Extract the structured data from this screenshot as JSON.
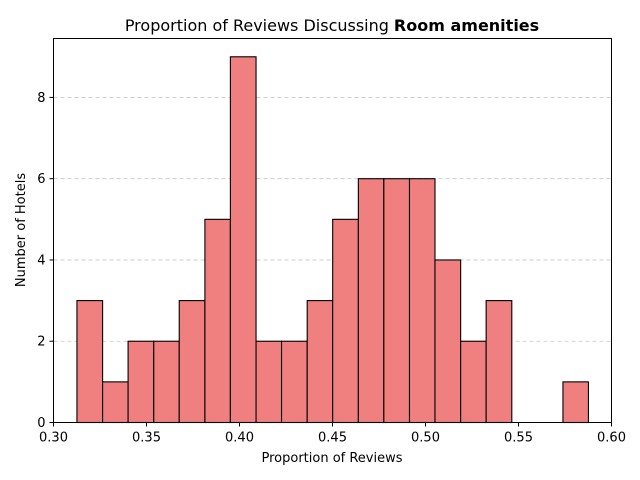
{
  "chart_data": {
    "type": "bar",
    "subtype": "histogram",
    "title": "Proportion of Reviews Discussing",
    "title_bold": "Room amenities",
    "xlabel": "Proportion of Reviews",
    "ylabel": "Number of Hotels",
    "xlim": [
      0.3,
      0.6
    ],
    "ylim": [
      0,
      9.45
    ],
    "xticks": [
      "0.30",
      "0.35",
      "0.40",
      "0.45",
      "0.50",
      "0.55",
      "0.60"
    ],
    "xtick_values": [
      0.3,
      0.35,
      0.4,
      0.45,
      0.5,
      0.55,
      0.6
    ],
    "yticks": [
      "0",
      "2",
      "4",
      "6",
      "8"
    ],
    "ytick_values": [
      0,
      2,
      4,
      6,
      8
    ],
    "grid": "horizontal-dashed",
    "bar_color": "#f08080",
    "edge_color": "#000000",
    "bins": [
      {
        "x0": 0.3126,
        "x1": 0.3264,
        "value": 3
      },
      {
        "x0": 0.3264,
        "x1": 0.3401,
        "value": 1
      },
      {
        "x0": 0.3401,
        "x1": 0.3539,
        "value": 2
      },
      {
        "x0": 0.3539,
        "x1": 0.3676,
        "value": 2
      },
      {
        "x0": 0.3676,
        "x1": 0.3814,
        "value": 3
      },
      {
        "x0": 0.3814,
        "x1": 0.3951,
        "value": 5
      },
      {
        "x0": 0.3951,
        "x1": 0.4089,
        "value": 9
      },
      {
        "x0": 0.4089,
        "x1": 0.4226,
        "value": 2
      },
      {
        "x0": 0.4226,
        "x1": 0.4364,
        "value": 2
      },
      {
        "x0": 0.4364,
        "x1": 0.4501,
        "value": 3
      },
      {
        "x0": 0.4501,
        "x1": 0.4639,
        "value": 5
      },
      {
        "x0": 0.4639,
        "x1": 0.4776,
        "value": 6
      },
      {
        "x0": 0.4776,
        "x1": 0.4914,
        "value": 6
      },
      {
        "x0": 0.4914,
        "x1": 0.5051,
        "value": 6
      },
      {
        "x0": 0.5051,
        "x1": 0.5189,
        "value": 4
      },
      {
        "x0": 0.5189,
        "x1": 0.5326,
        "value": 2
      },
      {
        "x0": 0.5326,
        "x1": 0.5464,
        "value": 3
      },
      {
        "x0": 0.5464,
        "x1": 0.5601,
        "value": 0
      },
      {
        "x0": 0.5601,
        "x1": 0.5739,
        "value": 0
      },
      {
        "x0": 0.5739,
        "x1": 0.5876,
        "value": 1
      }
    ]
  }
}
